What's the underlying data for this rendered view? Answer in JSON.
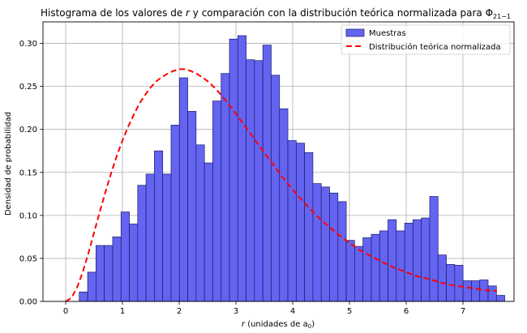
{
  "chart_data": {
    "type": "bar",
    "title_parts": [
      "Histograma de los valores de ",
      "r",
      " y comparación con la distribución teórica normalizada para Φ",
      "21−1"
    ],
    "xlabel_parts": [
      "r",
      " (unidades de a",
      "0",
      ")"
    ],
    "ylabel": "Densidad de probabilidad",
    "xlim": [
      -0.4,
      7.9
    ],
    "ylim": [
      0,
      0.325
    ],
    "xticks": [
      0,
      1,
      2,
      3,
      4,
      5,
      6,
      7
    ],
    "yticks": [
      0.0,
      0.05,
      0.1,
      0.15,
      0.2,
      0.25,
      0.3
    ],
    "ytick_labels": [
      "0.00",
      "0.05",
      "0.10",
      "0.15",
      "0.20",
      "0.25",
      "0.30"
    ],
    "grid": true,
    "legend_position": "top-right",
    "legend": [
      "Muestras",
      "Distribución teórica normalizada"
    ],
    "colors": {
      "bars": "#6464f0",
      "bar_edge": "#1a1a6e",
      "curve": "#ff0000"
    },
    "histogram": {
      "name": "Muestras",
      "bin_start": 0.24,
      "bin_width": 0.147,
      "values": [
        0.011,
        0.034,
        0.065,
        0.065,
        0.075,
        0.104,
        0.09,
        0.135,
        0.148,
        0.175,
        0.148,
        0.205,
        0.26,
        0.221,
        0.182,
        0.161,
        0.233,
        0.265,
        0.305,
        0.309,
        0.281,
        0.28,
        0.298,
        0.263,
        0.224,
        0.187,
        0.184,
        0.173,
        0.137,
        0.133,
        0.126,
        0.116,
        0.071,
        0.064,
        0.074,
        0.078,
        0.082,
        0.095,
        0.082,
        0.091,
        0.095,
        0.097,
        0.122,
        0.054,
        0.043,
        0.042,
        0.024,
        0.024,
        0.025,
        0.018,
        0.007
      ]
    },
    "curve": {
      "name": "Distribución teórica normalizada",
      "x": [
        0.0,
        0.1,
        0.2,
        0.3,
        0.4,
        0.5,
        0.6,
        0.7,
        0.8,
        0.9,
        1.0,
        1.1,
        1.2,
        1.3,
        1.4,
        1.5,
        1.6,
        1.7,
        1.8,
        1.9,
        2.0,
        2.1,
        2.2,
        2.3,
        2.4,
        2.5,
        2.6,
        2.7,
        2.8,
        2.9,
        3.0,
        3.2,
        3.4,
        3.6,
        3.8,
        4.0,
        4.2,
        4.4,
        4.6,
        4.8,
        5.0,
        5.2,
        5.4,
        5.6,
        5.8,
        6.0,
        6.2,
        6.4,
        6.6,
        6.8,
        7.0,
        7.2,
        7.4,
        7.6
      ],
      "y": [
        0.0,
        0.004,
        0.016,
        0.034,
        0.056,
        0.08,
        0.104,
        0.127,
        0.149,
        0.169,
        0.187,
        0.203,
        0.217,
        0.23,
        0.24,
        0.249,
        0.256,
        0.261,
        0.265,
        0.268,
        0.27,
        0.27,
        0.268,
        0.265,
        0.261,
        0.256,
        0.25,
        0.243,
        0.235,
        0.227,
        0.218,
        0.2,
        0.182,
        0.164,
        0.146,
        0.13,
        0.115,
        0.101,
        0.089,
        0.078,
        0.068,
        0.059,
        0.052,
        0.045,
        0.039,
        0.034,
        0.029,
        0.026,
        0.022,
        0.019,
        0.017,
        0.015,
        0.013,
        0.012
      ]
    }
  }
}
